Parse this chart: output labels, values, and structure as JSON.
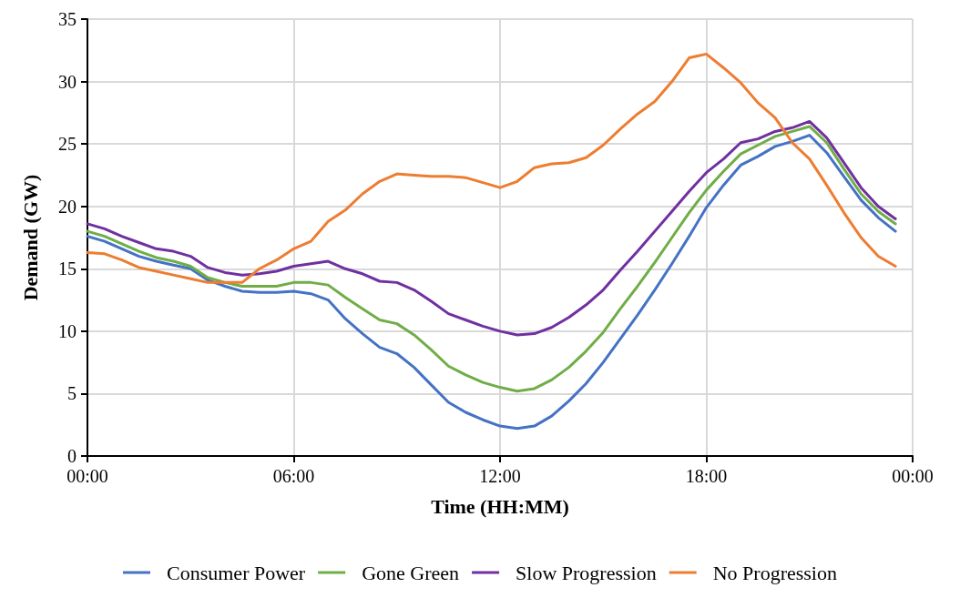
{
  "chart_data": {
    "type": "line",
    "xlabel": "Time (HH:MM)",
    "ylabel": "Demand (GW)",
    "x": [
      0,
      0.5,
      1,
      1.5,
      2,
      2.5,
      3,
      3.5,
      4,
      4.5,
      5,
      5.5,
      6,
      6.5,
      7,
      7.5,
      8,
      8.5,
      9,
      9.5,
      10,
      10.5,
      11,
      11.5,
      12,
      12.5,
      13,
      13.5,
      14,
      14.5,
      15,
      15.5,
      16,
      16.5,
      17,
      17.5,
      18,
      18.5,
      19,
      19.5,
      20,
      20.5,
      21,
      21.5,
      22,
      22.5,
      23,
      23.5
    ],
    "xlim": [
      0,
      24
    ],
    "xticks": [
      {
        "value": 0,
        "label": "00:00"
      },
      {
        "value": 6,
        "label": "06:00"
      },
      {
        "value": 12,
        "label": "12:00"
      },
      {
        "value": 18,
        "label": "18:00"
      },
      {
        "value": 24,
        "label": "00:00"
      }
    ],
    "ylim": [
      0,
      35
    ],
    "yticks": [
      0,
      5,
      10,
      15,
      20,
      25,
      30,
      35
    ],
    "grid": true,
    "legend": "bottom",
    "marker": "none",
    "line_style": "solid",
    "series": [
      {
        "name": "Consumer Power",
        "color": "#4472c4",
        "values": [
          17.6,
          17.2,
          16.6,
          16,
          15.6,
          15.3,
          15,
          14.1,
          13.6,
          13.2,
          13.1,
          13.1,
          13.2,
          13,
          12.5,
          11,
          9.8,
          8.7,
          8.2,
          7.1,
          5.7,
          4.3,
          3.5,
          2.9,
          2.4,
          2.2,
          2.4,
          3.2,
          4.4,
          5.8,
          7.5,
          9.4,
          11.3,
          13.3,
          15.4,
          17.6,
          19.9,
          21.7,
          23.3,
          24,
          24.8,
          25.2,
          25.7,
          24.3,
          22.4,
          20.5,
          19.1,
          18
        ]
      },
      {
        "name": "Gone Green",
        "color": "#70ad47",
        "values": [
          18,
          17.6,
          17,
          16.4,
          15.9,
          15.6,
          15.2,
          14.3,
          13.9,
          13.6,
          13.6,
          13.6,
          13.9,
          13.9,
          13.7,
          12.7,
          11.8,
          10.9,
          10.6,
          9.7,
          8.5,
          7.2,
          6.5,
          5.9,
          5.5,
          5.2,
          5.4,
          6.1,
          7.1,
          8.4,
          9.9,
          11.8,
          13.6,
          15.5,
          17.5,
          19.5,
          21.3,
          22.8,
          24.2,
          24.9,
          25.6,
          26,
          26.4,
          25.1,
          23,
          21,
          19.6,
          18.6
        ]
      },
      {
        "name": "Slow Progression",
        "color": "#7030a0",
        "values": [
          18.6,
          18.2,
          17.6,
          17.1,
          16.6,
          16.4,
          16,
          15.1,
          14.7,
          14.5,
          14.6,
          14.8,
          15.2,
          15.4,
          15.6,
          15,
          14.6,
          14,
          13.9,
          13.3,
          12.4,
          11.4,
          10.9,
          10.4,
          10,
          9.7,
          9.8,
          10.3,
          11.1,
          12.1,
          13.3,
          14.9,
          16.4,
          18,
          19.6,
          21.2,
          22.7,
          23.8,
          25.1,
          25.4,
          26,
          26.3,
          26.8,
          25.5,
          23.5,
          21.5,
          20,
          19
        ]
      },
      {
        "name": "No Progression",
        "color": "#ed7d31",
        "values": [
          16.3,
          16.2,
          15.7,
          15.1,
          14.8,
          14.5,
          14.2,
          13.9,
          13.9,
          13.9,
          15,
          15.7,
          16.6,
          17.2,
          18.8,
          19.7,
          21,
          22,
          22.6,
          22.5,
          22.4,
          22.4,
          22.3,
          21.9,
          21.5,
          22,
          23.1,
          23.4,
          23.5,
          23.9,
          24.9,
          26.2,
          27.4,
          28.4,
          30,
          31.9,
          32.2,
          31.1,
          29.9,
          28.3,
          27.1,
          25.1,
          23.8,
          21.7,
          19.5,
          17.5,
          16,
          15.2
        ]
      }
    ]
  }
}
